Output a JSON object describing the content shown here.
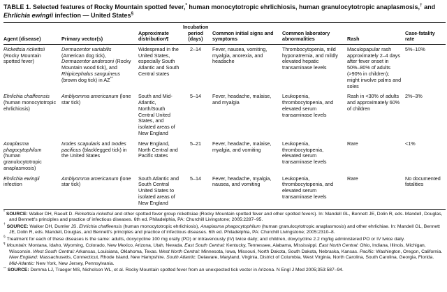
{
  "page": {
    "title_segments": [
      {
        "t": "TABLE 1. Selected features of Rocky Mountain spotted fever,"
      },
      {
        "t": "*",
        "sup": true
      },
      {
        "t": " human monocytotropic ehrlichiosis, human granulocytotropic anaplasmosis,"
      },
      {
        "t": "†",
        "sup": true
      },
      {
        "t": " and "
      },
      {
        "t": "Ehrlichia ewingii",
        "i": true
      },
      {
        "t": " infection — United States"
      },
      {
        "t": "§",
        "sup": true
      }
    ]
  },
  "table": {
    "headers": [
      "Agent (disease)",
      "Primary vector(s)",
      "Approximate distribution¶",
      "Incubation period (days)",
      "Common initial signs and symptoms",
      "Common laboratory abnormalities",
      "Rash",
      "Case-fatality rate"
    ],
    "rows": [
      {
        "agent": [
          {
            "t": "Rickettsia rickettsii",
            "i": true
          },
          {
            "t": " (Rocky Mountain spotted fever)"
          }
        ],
        "vectors": [
          {
            "t": "Dermacentor variabilis",
            "i": true
          },
          {
            "t": " (American dog tick), "
          },
          {
            "t": "Dermacentor andersoni",
            "i": true
          },
          {
            "t": " (Rocky Mountain wood tick), and "
          },
          {
            "t": "Rhipicephalus sanguineus",
            "i": true
          },
          {
            "t": " (brown dog tick) in AZ"
          },
          {
            "t": "**",
            "sup": true
          }
        ],
        "distribution": "Widespread in the United States, especially South Atlantic and South Central states",
        "incubation": "2–14",
        "signs": "Fever, nausea, vomiting, myalgia, anorexia, and headache",
        "lab": "Thrombocytopenia, mild hyponatremia, and mildly elevated hepatic transaminase levels",
        "rash": "Maculopapular rash approximately 2–4 days after fever onset in 50%–80% of adults (>90% in children); might involve palms and soles",
        "fatality": "5%–10%"
      },
      {
        "agent": [
          {
            "t": "Ehrlichia chaffeensis",
            "i": true
          },
          {
            "t": " (human monocytotropic ehrlichiosis)"
          }
        ],
        "vectors": [
          {
            "t": "Amblyomma americanum",
            "i": true
          },
          {
            "t": " (lone star tick)"
          }
        ],
        "distribution": "South and Mid-Atlantic, North/South Central United States, and isolated areas of New England",
        "incubation": "5–14",
        "signs": "Fever, headache, malaise, and myalgia",
        "lab": "Leukopenia, thrombocytopenia, and elevated serum transaminase levels",
        "rash": "Rash in <30% of adults and approximately 60% of children",
        "fatality": "2%–3%"
      },
      {
        "agent": [
          {
            "t": "Anaplasma phagocytophilum",
            "i": true
          },
          {
            "t": " (human granulocytotropic anaplasmosis)"
          }
        ],
        "vectors": [
          {
            "t": "Ixodes scapularis",
            "i": true
          },
          {
            "t": " and "
          },
          {
            "t": "Ixodes pacificus",
            "i": true
          },
          {
            "t": " (blacklegged tick) in the United States"
          }
        ],
        "distribution": "New England, North Central and Pacific states",
        "incubation": "5–21",
        "signs": "Fever, headache, malaise, myalgia, and vomiting",
        "lab": "Leukopenia, thrombocytopenia, elevated serum transaminase levels",
        "rash": "Rare",
        "fatality": "<1%"
      },
      {
        "agent": [
          {
            "t": "Ehrlichia ewingii",
            "i": true
          },
          {
            "t": " infection"
          }
        ],
        "vectors": [
          {
            "t": "Amblyomma americanum",
            "i": true
          },
          {
            "t": " (lone star tick)"
          }
        ],
        "distribution": "South Atlantic and South Central United States to isolated areas of New England",
        "incubation": "5–14",
        "signs": "Fever, headache, myalgia, nausea, and vomiting",
        "lab": "Leukopenia, thrombocytopenia, and elevated serum transaminase levels",
        "rash": "Rare",
        "fatality": "No documented fatalities"
      }
    ]
  },
  "footnotes": [
    {
      "marker": "*",
      "segments": [
        {
          "t": "SOURCE:",
          "b": true
        },
        {
          "t": " Walker DH, Raoult D. "
        },
        {
          "t": "Rickettsia rickettsii",
          "i": true
        },
        {
          "t": " and other spotted fever group rickettsiae (Rocky Mountain spotted fever and other spotted fevers). In: Mandell GL, Bennett JE, Dolin R, eds. Mandell, Douglas, and Bennett's principles and practice of infectious diseases. 6th ed. Philadelphia, PA: Churchill Livingstone; 2005:2287–95."
        }
      ]
    },
    {
      "marker": "†",
      "segments": [
        {
          "t": "SOURCE:",
          "b": true
        },
        {
          "t": " Walker DH, Dumler JS. "
        },
        {
          "t": "Ehrlichia chaffeensis",
          "i": true
        },
        {
          "t": " (human monocytotropic ehrlichiosis), "
        },
        {
          "t": "Anaplasma phagocytophilum",
          "i": true
        },
        {
          "t": " (human granulocytotropic anaplasmosis) and other ehrlichiae. In: Mandell GL, Bennett JE, Dolin R, eds. Mandell, Douglas, and Bennett's principles and practice of infectious diseases. 6th ed. Philadelphia, PA: Churchill Livingstone; 2005:2310–8."
        }
      ]
    },
    {
      "marker": "§",
      "segments": [
        {
          "t": "Treatment for each of these diseases is the same: adults, doxycycline 100 mg orally (PO) or intravenously (IV) twice daily; and children, doxycycline 2.2 mg/kg administered PO or IV twice daily."
        }
      ]
    },
    {
      "marker": "¶",
      "segments": [
        {
          "t": "Mountain:",
          "i": true
        },
        {
          "t": " Montana, Idaho, Wyoming, Colorado, New Mexico, Arizona, Utah, Nevada. "
        },
        {
          "t": "East South Central:",
          "i": true
        },
        {
          "t": " Kentucky, Tennessee, Alabama, Mississippi. "
        },
        {
          "t": "East North Central:",
          "i": true
        },
        {
          "t": " Ohio, Indiana, Illinois, Michigan, Wisconsin. "
        },
        {
          "t": "West South Central:",
          "i": true
        },
        {
          "t": " Arkansas, Louisiana, Oklahoma, Texas. "
        },
        {
          "t": "West North Central:",
          "i": true
        },
        {
          "t": " Minnesota, Iowa, Missouri, North Dakota, South Dakota, Nebraska, Kansas. "
        },
        {
          "t": "Pacific:",
          "i": true
        },
        {
          "t": " Washington, Oregon, California. "
        },
        {
          "t": "New England:",
          "i": true
        },
        {
          "t": " Massachusetts, Connecticut, Rhode Island, New Hampshire. "
        },
        {
          "t": "South Atlantic:",
          "i": true
        },
        {
          "t": " Delaware, Maryland, Virginia, District of Columbia, West Virginia, North Carolina, South Carolina, Georgia, Florida. "
        },
        {
          "t": "Mid-Atlantic:",
          "i": true
        },
        {
          "t": " New York, New Jersey, Pennsylvania."
        }
      ]
    },
    {
      "marker": "**",
      "segments": [
        {
          "t": "SOURCE:",
          "b": true
        },
        {
          "t": " Demma LJ, Traeger MS, Nicholson WL, et al. Rocky Mountain spotted fever from an unexpected tick vector in Arizona. N Engl J Med 2005;353:587–94."
        }
      ]
    }
  ]
}
